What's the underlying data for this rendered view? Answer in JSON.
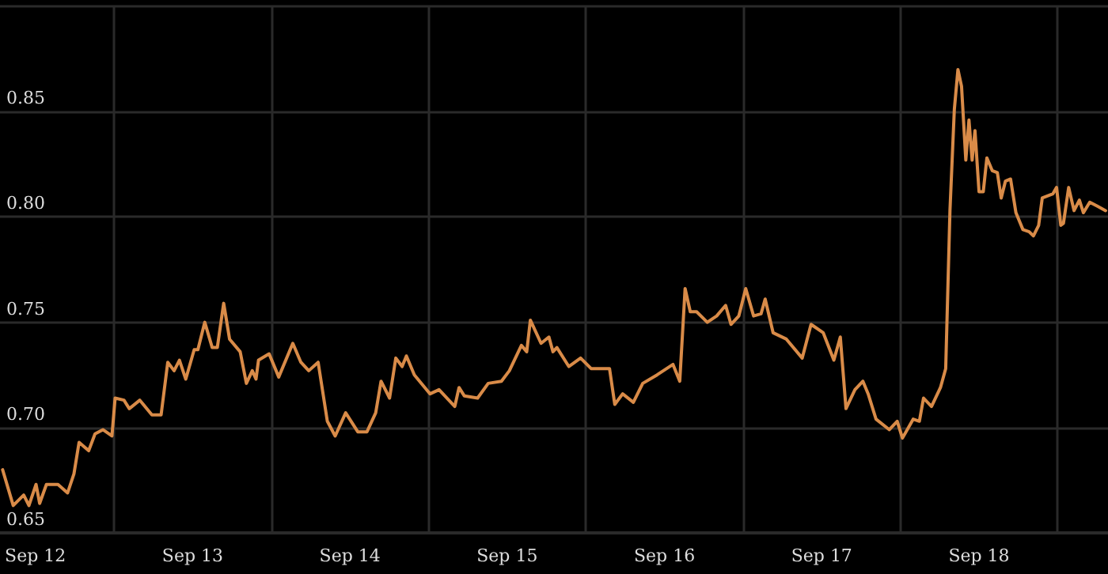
{
  "chart_data": {
    "type": "line",
    "color": "#d98b48",
    "grid": true,
    "marker": "none",
    "line_style": "solid",
    "xlim": [
      "--09-12T06:36",
      "--09-19T07:41"
    ],
    "xticks": [
      {
        "value": "--09-12T12:00",
        "label": "Sep 12"
      },
      {
        "value": "--09-13T12:00",
        "label": "Sep 13"
      },
      {
        "value": "--09-14T12:00",
        "label": "Sep 14"
      },
      {
        "value": "--09-15T12:00",
        "label": "Sep 15"
      },
      {
        "value": "--09-16T12:00",
        "label": "Sep 16"
      },
      {
        "value": "--09-17T12:00",
        "label": "Sep 17"
      },
      {
        "value": "--09-18T12:00",
        "label": "Sep 18"
      },
      {
        "value": "--09-13",
        "label": null
      },
      {
        "value": "--09-14",
        "label": null
      },
      {
        "value": "--09-15",
        "label": null
      },
      {
        "value": "--09-16",
        "label": null
      },
      {
        "value": "--09-17",
        "label": null
      },
      {
        "value": "--09-18",
        "label": null
      },
      {
        "value": "--09-19",
        "label": null
      }
    ],
    "ylim": [
      0.65,
      0.9
    ],
    "yticks": [
      {
        "value": 0.65,
        "label": "0.65"
      },
      {
        "value": 0.7,
        "label": "0.70"
      },
      {
        "value": 0.75,
        "label": "0.75"
      },
      {
        "value": 0.8,
        "label": "0.80"
      },
      {
        "value": 0.85,
        "label": "0.85"
      },
      {
        "value": 0.9,
        "label": null
      }
    ],
    "x": [
      "--09-12T07:00",
      "--09-12T08:37",
      "--09-12T10:13",
      "--09-12T11:01",
      "--09-12T12:06",
      "--09-12T12:39",
      "--09-12T13:41",
      "--09-12T15:27",
      "--09-12T16:55",
      "--09-12T17:53",
      "--09-12T18:40",
      "--09-12T20:08",
      "--09-12T21:06",
      "--09-12T22:18",
      "--09-12T23:41",
      "--09-13T00:10",
      "--09-13T01:31",
      "--09-13T02:20",
      "--09-13T03:56",
      "--09-13T05:47",
      "--09-13T07:11",
      "--09-13T08:12",
      "--09-13T09:10",
      "--09-13T09:59",
      "--09-13T10:57",
      "--09-13T12:14",
      "--09-13T12:48",
      "--09-13T13:51",
      "--09-13T14:59",
      "--09-13T15:46",
      "--09-13T16:44",
      "--09-13T17:38",
      "--09-13T19:15",
      "--09-13T20:12",
      "--09-13T21:06",
      "--09-13T21:40",
      "--09-13T22:03",
      "--09-13T23:40",
      "--09-14T01:08",
      "--09-14T03:17",
      "--09-14T04:31",
      "--09-14T05:43",
      "--09-14T07:09",
      "--09-14T08:33",
      "--09-14T09:45",
      "--09-14T11:21",
      "--09-14T13:12",
      "--09-14T14:36",
      "--09-14T15:56",
      "--09-14T16:45",
      "--09-14T18:03",
      "--09-14T19:00",
      "--09-14T19:58",
      "--09-14T20:37",
      "--09-14T21:50",
      "--09-15T00:14",
      "--09-15T01:36",
      "--09-15T04:00",
      "--09-15T04:39",
      "--09-15T05:28",
      "--09-15T07:29",
      "--09-15T09:06",
      "--09-15T11:07",
      "--09-15T12:20",
      "--09-15T14:10",
      "--09-15T14:59",
      "--09-15T15:32",
      "--09-15T17:10",
      "--09-15T18:22",
      "--09-15T18:59",
      "--09-15T19:35",
      "--09-15T21:24",
      "--09-15T23:12",
      "--09-16T00:48",
      "--09-16T03:37",
      "--09-16T04:25",
      "--09-16T05:37",
      "--09-16T07:15",
      "--09-16T08:41",
      "--09-16T10:52",
      "--09-16T13:18",
      "--09-16T14:20",
      "--09-16T15:09",
      "--09-16T15:56",
      "--09-16T16:54",
      "--09-16T18:32",
      "--09-16T19:58",
      "--09-16T21:20",
      "--09-16T22:09",
      "--09-16T23:21",
      "--09-17T00:24",
      "--09-17T01:36",
      "--09-17T02:44",
      "--09-17T03:22",
      "--09-17T04:35",
      "--09-17T06:36",
      "--09-17T09:01",
      "--09-17T10:22",
      "--09-17T12:14",
      "--09-17T13:51",
      "--09-17T14:50",
      "--09-17T15:42",
      "--09-17T17:04",
      "--09-17T18:17",
      "--09-17T19:05",
      "--09-17T20:17",
      "--09-17T22:19",
      "--09-17T23:31",
      "--09-18T00:19",
      "--09-18T01:57",
      "--09-18T02:54",
      "--09-18T03:32",
      "--09-18T04:45",
      "--09-18T06:07",
      "--09-18T06:55",
      "--09-18T07:34",
      "--09-18T08:14",
      "--09-18T08:47",
      "--09-18T09:20",
      "--09-18T09:59",
      "--09-18T10:28",
      "--09-18T10:57",
      "--09-18T11:23",
      "--09-18T12:00",
      "--09-18T12:39",
      "--09-18T13:12",
      "--09-18T14:01",
      "--09-18T14:48",
      "--09-18T15:23",
      "--09-18T16:02",
      "--09-18T16:49",
      "--09-18T17:38",
      "--09-18T18:42",
      "--09-18T19:39",
      "--09-18T20:18",
      "--09-18T21:06",
      "--09-18T21:39",
      "--09-18T23:17",
      "--09-18T23:50",
      "--09-19T00:29",
      "--09-19T00:53",
      "--09-19T01:41",
      "--09-19T02:30",
      "--09-19T03:19",
      "--09-19T03:56",
      "--09-19T04:54",
      "--09-19T06:07",
      "--09-19T07:19"
    ],
    "values": [
      0.68,
      0.663,
      0.668,
      0.663,
      0.673,
      0.664,
      0.673,
      0.673,
      0.669,
      0.678,
      0.693,
      0.689,
      0.697,
      0.699,
      0.696,
      0.714,
      0.713,
      0.709,
      0.713,
      0.706,
      0.706,
      0.731,
      0.727,
      0.732,
      0.723,
      0.737,
      0.737,
      0.75,
      0.738,
      0.738,
      0.759,
      0.742,
      0.736,
      0.721,
      0.727,
      0.723,
      0.732,
      0.735,
      0.724,
      0.74,
      0.731,
      0.727,
      0.731,
      0.703,
      0.696,
      0.707,
      0.698,
      0.698,
      0.707,
      0.722,
      0.714,
      0.733,
      0.729,
      0.734,
      0.725,
      0.716,
      0.718,
      0.71,
      0.719,
      0.715,
      0.714,
      0.721,
      0.722,
      0.727,
      0.739,
      0.736,
      0.751,
      0.74,
      0.743,
      0.736,
      0.738,
      0.729,
      0.733,
      0.728,
      0.728,
      0.711,
      0.716,
      0.712,
      0.721,
      0.725,
      0.73,
      0.722,
      0.766,
      0.755,
      0.755,
      0.75,
      0.753,
      0.758,
      0.749,
      0.753,
      0.766,
      0.753,
      0.754,
      0.761,
      0.745,
      0.742,
      0.733,
      0.749,
      0.745,
      0.732,
      0.743,
      0.709,
      0.718,
      0.722,
      0.716,
      0.704,
      0.699,
      0.703,
      0.695,
      0.704,
      0.703,
      0.714,
      0.71,
      0.719,
      0.728,
      0.803,
      0.851,
      0.87,
      0.862,
      0.827,
      0.846,
      0.827,
      0.841,
      0.812,
      0.812,
      0.828,
      0.822,
      0.821,
      0.809,
      0.817,
      0.818,
      0.802,
      0.794,
      0.793,
      0.791,
      0.796,
      0.809,
      0.811,
      0.814,
      0.796,
      0.797,
      0.814,
      0.803,
      0.808,
      0.802,
      0.807,
      0.805,
      0.803
    ]
  }
}
